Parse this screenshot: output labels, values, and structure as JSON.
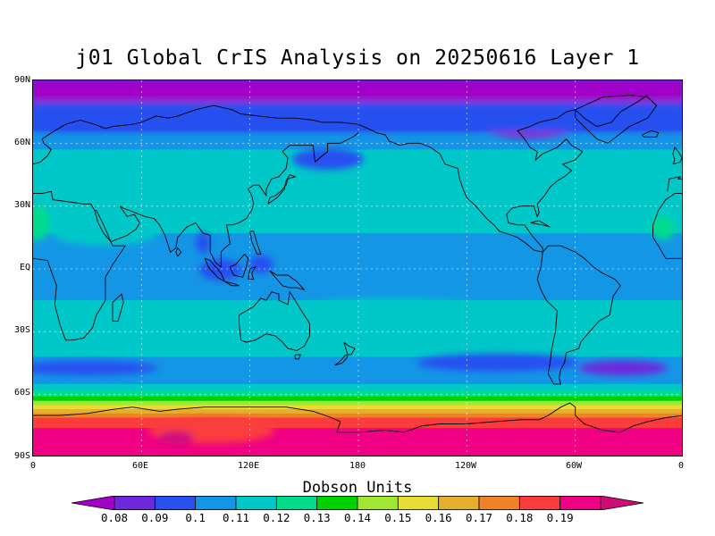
{
  "title": "j01 Global CrIS Analysis on 20250616 Layer 1",
  "colorbar_title": "Dobson Units",
  "colorbar": {
    "levels": [
      "0.08",
      "0.09",
      "0.1",
      "0.11",
      "0.12",
      "0.13",
      "0.14",
      "0.15",
      "0.16",
      "0.17",
      "0.18",
      "0.19"
    ],
    "colors": [
      "#a000c8",
      "#6e28dc",
      "#2850f0",
      "#1496e6",
      "#00c8c8",
      "#00dc8c",
      "#00d200",
      "#a0e632",
      "#e6dc32",
      "#e6af2d",
      "#f08228",
      "#fa3c3c",
      "#f00082",
      "#d20a78"
    ]
  },
  "chart_data": {
    "type": "heatmap",
    "title": "j01 Global CrIS Analysis on 20250616 Layer 1",
    "units": "Dobson Units",
    "projection": "cylindrical-equidistant",
    "x_range": [
      0,
      360
    ],
    "y_range": [
      -90,
      90
    ],
    "x_ticks": [
      "0",
      "60E",
      "120E",
      "180",
      "120W",
      "60W",
      "0"
    ],
    "y_ticks": [
      "90N",
      "60N",
      "30N",
      "EQ",
      "30S",
      "60S",
      "90S"
    ],
    "grid": "dotted",
    "latitude_profile": [
      {
        "lat": 90,
        "value": 0.085
      },
      {
        "lat": 80,
        "value": 0.088
      },
      {
        "lat": 70,
        "value": 0.095
      },
      {
        "lat": 62,
        "value": 0.105
      },
      {
        "lat": 55,
        "value": 0.112
      },
      {
        "lat": 40,
        "value": 0.118
      },
      {
        "lat": 25,
        "value": 0.112
      },
      {
        "lat": 10,
        "value": 0.108
      },
      {
        "lat": 0,
        "value": 0.106
      },
      {
        "lat": -15,
        "value": 0.11
      },
      {
        "lat": -30,
        "value": 0.114
      },
      {
        "lat": -42,
        "value": 0.11
      },
      {
        "lat": -50,
        "value": 0.103
      },
      {
        "lat": -56,
        "value": 0.112
      },
      {
        "lat": -60,
        "value": 0.125
      },
      {
        "lat": -62,
        "value": 0.135
      },
      {
        "lat": -64,
        "value": 0.145
      },
      {
        "lat": -66,
        "value": 0.155
      },
      {
        "lat": -68,
        "value": 0.165
      },
      {
        "lat": -70,
        "value": 0.175
      },
      {
        "lat": -72,
        "value": 0.185
      },
      {
        "lat": -80,
        "value": 0.195
      },
      {
        "lat": -90,
        "value": 0.195
      }
    ]
  }
}
